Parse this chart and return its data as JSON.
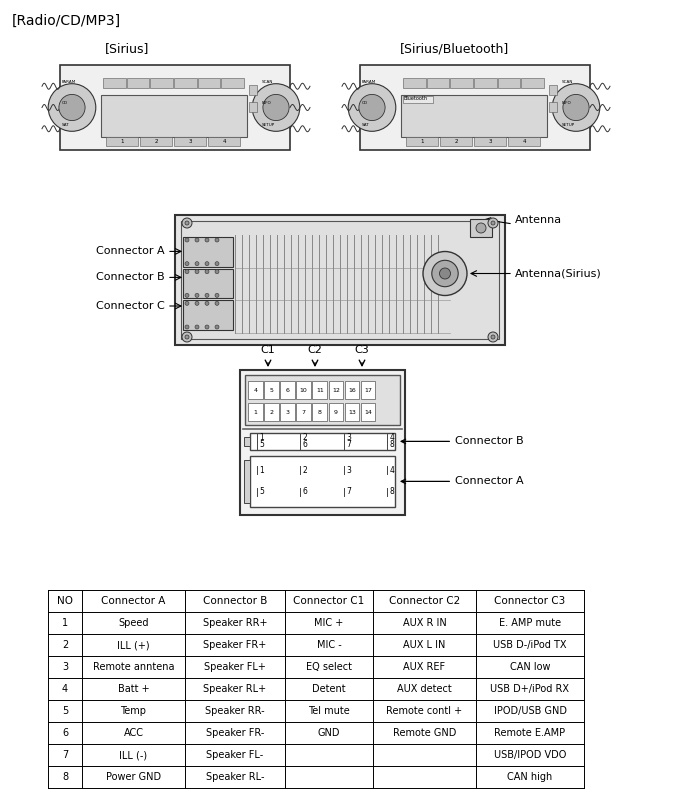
{
  "title": "[Radio/CD/MP3]",
  "sirius_label": "[Sirius]",
  "bluetooth_label": "[Sirius/Bluetooth]",
  "antenna_label": "Antenna",
  "antenna_sirius_label": "Antenna(Sirius)",
  "connector_a_label": "Connector A",
  "connector_b_label": "Connector B",
  "connector_c_label": "Connector C",
  "c1_label": "C1",
  "c2_label": "C2",
  "c3_label": "C3",
  "conn_b_arrow": "Connector B",
  "conn_a_arrow": "Connector A",
  "table_headers": [
    "NO",
    "Connector A",
    "Connector B",
    "Connector C1",
    "Connector C2",
    "Connector C3"
  ],
  "table_rows": [
    [
      "1",
      "Speed",
      "Speaker RR+",
      "MIC +",
      "AUX R IN",
      "E. AMP mute"
    ],
    [
      "2",
      "ILL (+)",
      "Speaker FR+",
      "MIC -",
      "AUX L IN",
      "USB D-/iPod TX"
    ],
    [
      "3",
      "Remote anntena",
      "Speaker FL+",
      "EQ select",
      "AUX REF",
      "CAN low"
    ],
    [
      "4",
      "Batt +",
      "Speaker RL+",
      "Detent",
      "AUX detect",
      "USB D+/iPod RX"
    ],
    [
      "5",
      "Temp",
      "Speaker RR-",
      "Tel mute",
      "Remote contl +",
      "IPOD/USB GND"
    ],
    [
      "6",
      "ACC",
      "Speaker FR-",
      "GND",
      "Remote GND",
      "Remote E.AMP"
    ],
    [
      "7",
      "ILL (-)",
      "Speaker FL-",
      "",
      "",
      "USB/IPOD VDO"
    ],
    [
      "8",
      "Power GND",
      "Speaker RL-",
      "",
      "",
      "CAN high"
    ]
  ],
  "bg_color": "#ffffff"
}
